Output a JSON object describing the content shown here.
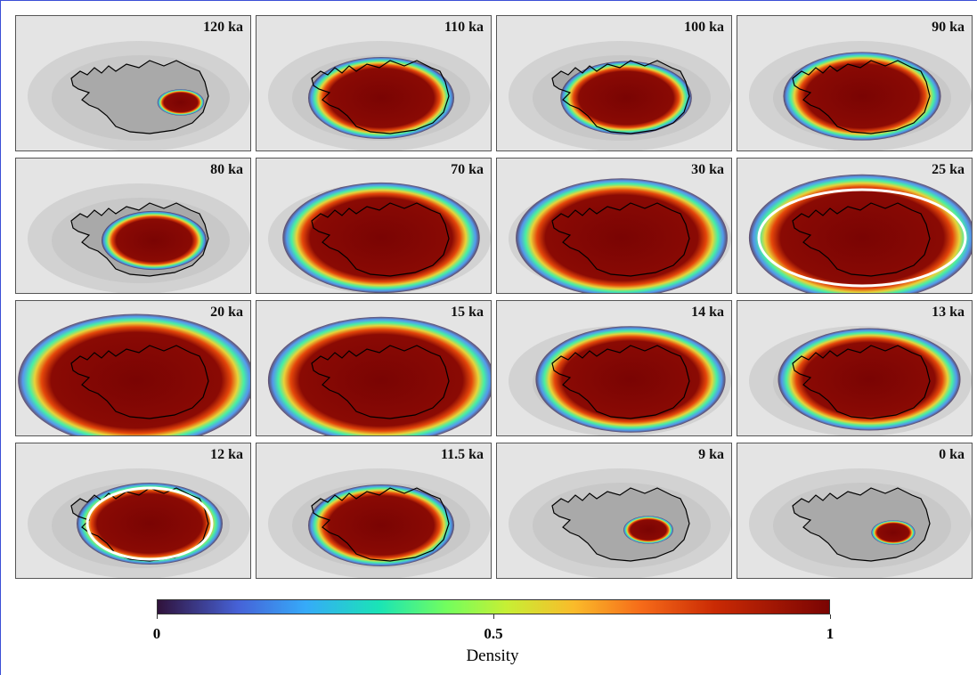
{
  "panels": [
    {
      "label": "120 ka"
    },
    {
      "label": "110 ka"
    },
    {
      "label": "100 ka"
    },
    {
      "label": "90 ka"
    },
    {
      "label": "80 ka"
    },
    {
      "label": "70 ka"
    },
    {
      "label": "30 ka"
    },
    {
      "label": "25 ka"
    },
    {
      "label": "20 ka"
    },
    {
      "label": "15 ka"
    },
    {
      "label": "14 ka"
    },
    {
      "label": "13 ka"
    },
    {
      "label": "12 ka"
    },
    {
      "label": "11.5 ka"
    },
    {
      "label": "9 ka"
    },
    {
      "label": "0 ka"
    }
  ],
  "colorbar": {
    "label": "Density",
    "ticks": [
      0,
      0.5,
      1
    ]
  }
}
